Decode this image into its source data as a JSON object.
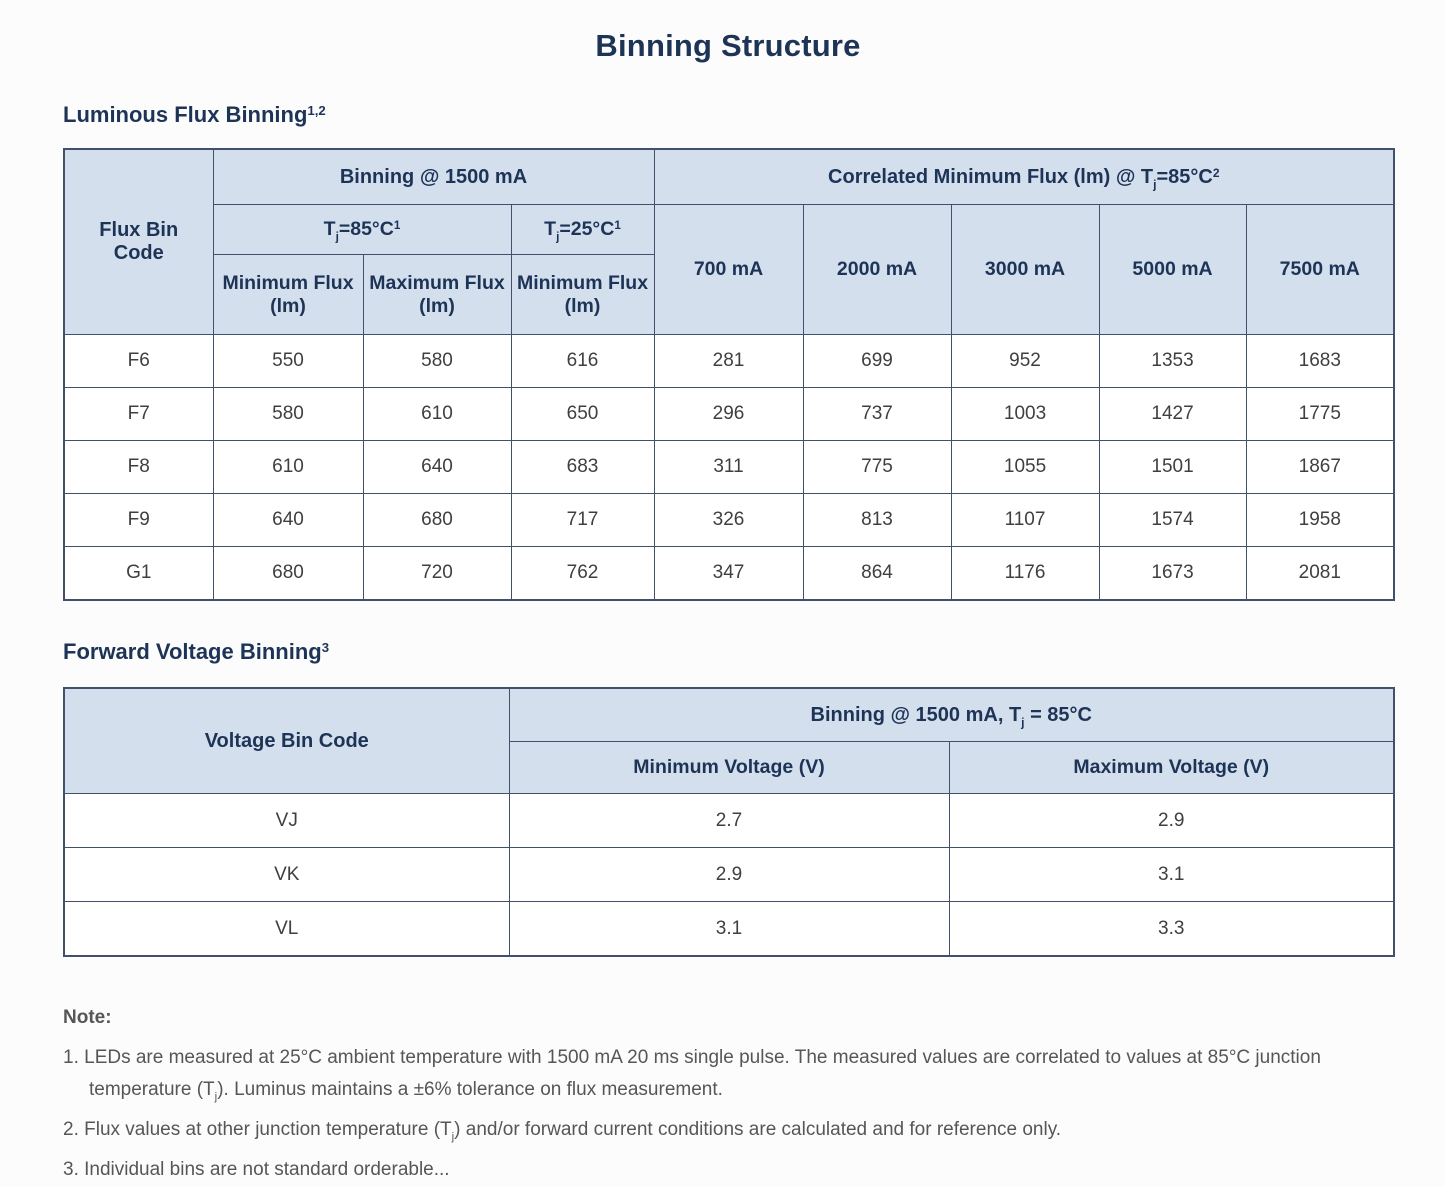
{
  "page": {
    "title": "Binning Structure"
  },
  "colors": {
    "heading_text": "#1d3456",
    "table_header_bg": "#d4dfee",
    "table_border": "#41506b",
    "data_text": "#3f3f3f",
    "note_text": "#565656"
  },
  "flux_section": {
    "heading": [
      {
        "t": "Luminous Flux Binning"
      },
      {
        "t": "1,2",
        "s": "sup"
      }
    ]
  },
  "flux_table": {
    "corner": "Flux Bin Code",
    "group_binning": "Binning @ 1500 mA",
    "group_correlated": [
      {
        "t": "Correlated Minimum Flux (lm) @ T"
      },
      {
        "t": "j",
        "s": "sub"
      },
      {
        "t": "=85°C"
      },
      {
        "t": "2",
        "s": "sup"
      }
    ],
    "cond_85": [
      {
        "t": "T"
      },
      {
        "t": "j",
        "s": "sub"
      },
      {
        "t": "=85°C"
      },
      {
        "t": "1",
        "s": "sup"
      }
    ],
    "cond_25": [
      {
        "t": "T"
      },
      {
        "t": "j",
        "s": "sub"
      },
      {
        "t": "=25°C"
      },
      {
        "t": "1",
        "s": "sup"
      }
    ],
    "flux_cols": [
      "Minimum Flux (lm)",
      "Maximum Flux (lm)",
      "Minimum Flux (lm)"
    ],
    "current_cols": [
      "700 mA",
      "2000 mA",
      "3000 mA",
      "5000 mA",
      "7500 mA"
    ],
    "rows": [
      [
        "F6",
        "550",
        "580",
        "616",
        "281",
        "699",
        "952",
        "1353",
        "1683"
      ],
      [
        "F7",
        "580",
        "610",
        "650",
        "296",
        "737",
        "1003",
        "1427",
        "1775"
      ],
      [
        "F8",
        "610",
        "640",
        "683",
        "311",
        "775",
        "1055",
        "1501",
        "1867"
      ],
      [
        "F9",
        "640",
        "680",
        "717",
        "326",
        "813",
        "1107",
        "1574",
        "1958"
      ],
      [
        "G1",
        "680",
        "720",
        "762",
        "347",
        "864",
        "1176",
        "1673",
        "2081"
      ]
    ]
  },
  "voltage_section": {
    "heading": [
      {
        "t": "Forward Voltage Binning"
      },
      {
        "t": "3",
        "s": "sup"
      }
    ]
  },
  "voltage_table": {
    "corner": "Voltage Bin Code",
    "group": [
      {
        "t": "Binning @ 1500 mA, T"
      },
      {
        "t": "j",
        "s": "sub"
      },
      {
        "t": " = 85°C"
      }
    ],
    "cols": [
      "Minimum Voltage (V)",
      "Maximum Voltage (V)"
    ],
    "rows": [
      [
        "VJ",
        "2.7",
        "2.9"
      ],
      [
        "VK",
        "2.9",
        "3.1"
      ],
      [
        "VL",
        "3.1",
        "3.3"
      ]
    ]
  },
  "notes": {
    "label": "Note:",
    "items": [
      [
        {
          "t": "1. LEDs are measured at 25°C ambient temperature with 1500 mA 20 ms single pulse. The measured values are correlated to values at 85°C junction temperature (T"
        },
        {
          "t": "j",
          "s": "sub"
        },
        {
          "t": "). Luminus maintains a ±6% tolerance on flux measurement."
        }
      ],
      [
        {
          "t": "2. Flux values at other junction temperature (T"
        },
        {
          "t": "j",
          "s": "sub"
        },
        {
          "t": ") and/or forward current conditions are calculated and for reference only."
        }
      ],
      [
        {
          "t": "3. Individual bins are not standard orderable..."
        }
      ]
    ]
  }
}
